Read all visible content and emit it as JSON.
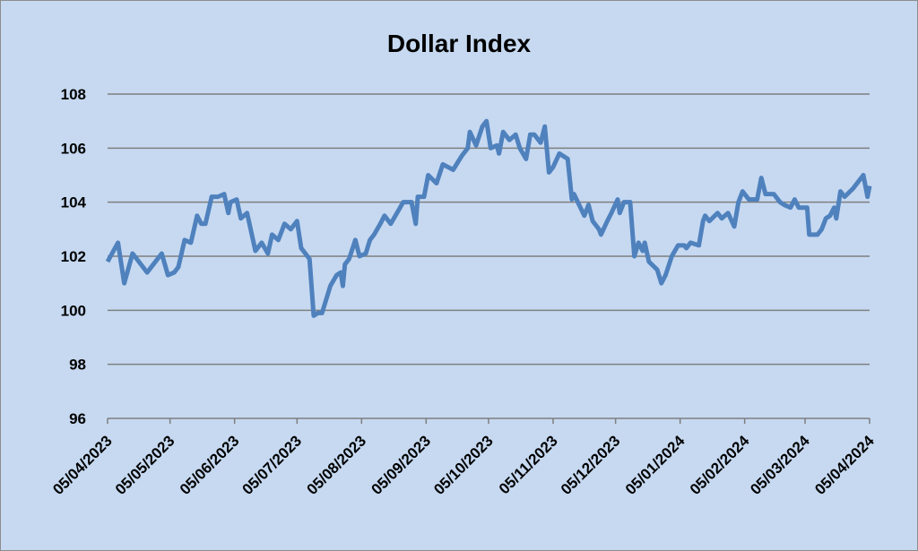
{
  "chart_data": {
    "type": "line",
    "title": "Dollar Index",
    "x": [
      "2023-04-05",
      "2023-04-10",
      "2023-04-13",
      "2023-04-17",
      "2023-04-20",
      "2023-04-24",
      "2023-04-26",
      "2023-05-01",
      "2023-05-04",
      "2023-05-07",
      "2023-05-09",
      "2023-05-12",
      "2023-05-15",
      "2023-05-18",
      "2023-05-20",
      "2023-05-22",
      "2023-05-25",
      "2023-05-28",
      "2023-05-31",
      "2023-06-02",
      "2023-06-03",
      "2023-06-06",
      "2023-06-08",
      "2023-06-11",
      "2023-06-15",
      "2023-06-18",
      "2023-06-21",
      "2023-06-23",
      "2023-06-26",
      "2023-06-29",
      "2023-07-02",
      "2023-07-05",
      "2023-07-07",
      "2023-07-11",
      "2023-07-13",
      "2023-07-15",
      "2023-07-17",
      "2023-07-21",
      "2023-07-24",
      "2023-07-26",
      "2023-07-27",
      "2023-07-28",
      "2023-07-30",
      "2023-08-02",
      "2023-08-04",
      "2023-08-07",
      "2023-08-09",
      "2023-08-11",
      "2023-08-14",
      "2023-08-16",
      "2023-08-19",
      "2023-08-22",
      "2023-08-25",
      "2023-08-29",
      "2023-08-31",
      "2023-09-01",
      "2023-09-04",
      "2023-09-06",
      "2023-09-10",
      "2023-09-13",
      "2023-09-18",
      "2023-09-22",
      "2023-09-25",
      "2023-09-26",
      "2023-09-29",
      "2023-10-02",
      "2023-10-04",
      "2023-10-06",
      "2023-10-09",
      "2023-10-10",
      "2023-10-12",
      "2023-10-15",
      "2023-10-18",
      "2023-10-20",
      "2023-10-23",
      "2023-10-25",
      "2023-10-27",
      "2023-10-30",
      "2023-11-01",
      "2023-11-03",
      "2023-11-05",
      "2023-11-08",
      "2023-11-12",
      "2023-11-14",
      "2023-11-15",
      "2023-11-20",
      "2023-11-22",
      "2023-11-24",
      "2023-11-27",
      "2023-11-28",
      "2023-12-01",
      "2023-12-03",
      "2023-12-06",
      "2023-12-07",
      "2023-12-09",
      "2023-12-12",
      "2023-12-14",
      "2023-12-16",
      "2023-12-18",
      "2023-12-19",
      "2023-12-21",
      "2023-12-25",
      "2023-12-27",
      "2023-12-29",
      "2024-01-01",
      "2024-01-04",
      "2024-01-07",
      "2024-01-08",
      "2024-01-10",
      "2024-01-14",
      "2024-01-16",
      "2024-01-17",
      "2024-01-19",
      "2024-01-23",
      "2024-01-25",
      "2024-01-28",
      "2024-01-31",
      "2024-02-02",
      "2024-02-04",
      "2024-02-07",
      "2024-02-11",
      "2024-02-13",
      "2024-02-15",
      "2024-02-19",
      "2024-02-22",
      "2024-02-24",
      "2024-02-27",
      "2024-02-29",
      "2024-03-02",
      "2024-03-06",
      "2024-03-07",
      "2024-03-11",
      "2024-03-13",
      "2024-03-15",
      "2024-03-17",
      "2024-03-19",
      "2024-03-20",
      "2024-03-22",
      "2024-03-24",
      "2024-03-28",
      "2024-03-30",
      "2024-04-02",
      "2024-04-04",
      "2024-04-05"
    ],
    "series": [
      {
        "color": "#4f81bd",
        "values": [
          101.8,
          102.5,
          101.0,
          102.1,
          101.8,
          101.4,
          101.6,
          102.1,
          101.3,
          101.4,
          101.6,
          102.6,
          102.5,
          103.5,
          103.2,
          103.2,
          104.2,
          104.2,
          104.3,
          103.6,
          104.0,
          104.1,
          103.4,
          103.6,
          102.2,
          102.5,
          102.1,
          102.8,
          102.6,
          103.2,
          103.0,
          103.3,
          102.3,
          101.9,
          99.8,
          99.9,
          99.9,
          100.9,
          101.3,
          101.4,
          100.9,
          101.7,
          101.9,
          102.6,
          102.0,
          102.1,
          102.6,
          102.8,
          103.2,
          103.5,
          103.2,
          103.6,
          104.0,
          104.0,
          103.2,
          104.2,
          104.2,
          105.0,
          104.7,
          105.4,
          105.2,
          105.7,
          106.0,
          106.6,
          106.1,
          106.8,
          107.0,
          106.0,
          106.1,
          105.8,
          106.6,
          106.3,
          106.5,
          106.0,
          105.6,
          106.5,
          106.5,
          106.2,
          106.8,
          105.1,
          105.3,
          105.8,
          105.6,
          104.1,
          104.3,
          103.5,
          103.9,
          103.3,
          103.0,
          102.8,
          103.3,
          103.6,
          104.1,
          103.6,
          104.0,
          104.0,
          102.0,
          102.5,
          102.2,
          102.5,
          101.8,
          101.5,
          101.0,
          101.3,
          102.0,
          102.4,
          102.4,
          102.3,
          102.5,
          102.4,
          103.3,
          103.5,
          103.3,
          103.6,
          103.4,
          103.6,
          103.1,
          104.0,
          104.4,
          104.1,
          104.1,
          104.9,
          104.3,
          104.3,
          104.0,
          103.9,
          103.8,
          104.1,
          103.8,
          103.8,
          102.8,
          102.8,
          103.0,
          103.4,
          103.5,
          103.8,
          103.4,
          104.4,
          104.2,
          104.5,
          104.7,
          105.0,
          104.2,
          104.6
        ]
      }
    ],
    "xlim": [
      "2023-04-05",
      "2024-04-05"
    ],
    "xticks": [
      {
        "value": "2023-04-05",
        "label": "05/04/2023"
      },
      {
        "value": "2023-05-05",
        "label": "05/05/2023"
      },
      {
        "value": "2023-06-05",
        "label": "05/06/2023"
      },
      {
        "value": "2023-07-05",
        "label": "05/07/2023"
      },
      {
        "value": "2023-08-05",
        "label": "05/08/2023"
      },
      {
        "value": "2023-09-05",
        "label": "05/09/2023"
      },
      {
        "value": "2023-10-05",
        "label": "05/10/2023"
      },
      {
        "value": "2023-11-05",
        "label": "05/11/2023"
      },
      {
        "value": "2023-12-05",
        "label": "05/12/2023"
      },
      {
        "value": "2024-01-05",
        "label": "05/01/2024"
      },
      {
        "value": "2024-02-05",
        "label": "05/02/2024"
      },
      {
        "value": "2024-03-05",
        "label": "05/03/2024"
      },
      {
        "value": "2024-04-05",
        "label": "05/04/2024"
      }
    ],
    "ylim": [
      96,
      108
    ],
    "yticks": [
      96,
      98,
      100,
      102,
      104,
      106,
      108
    ],
    "grid": true
  }
}
